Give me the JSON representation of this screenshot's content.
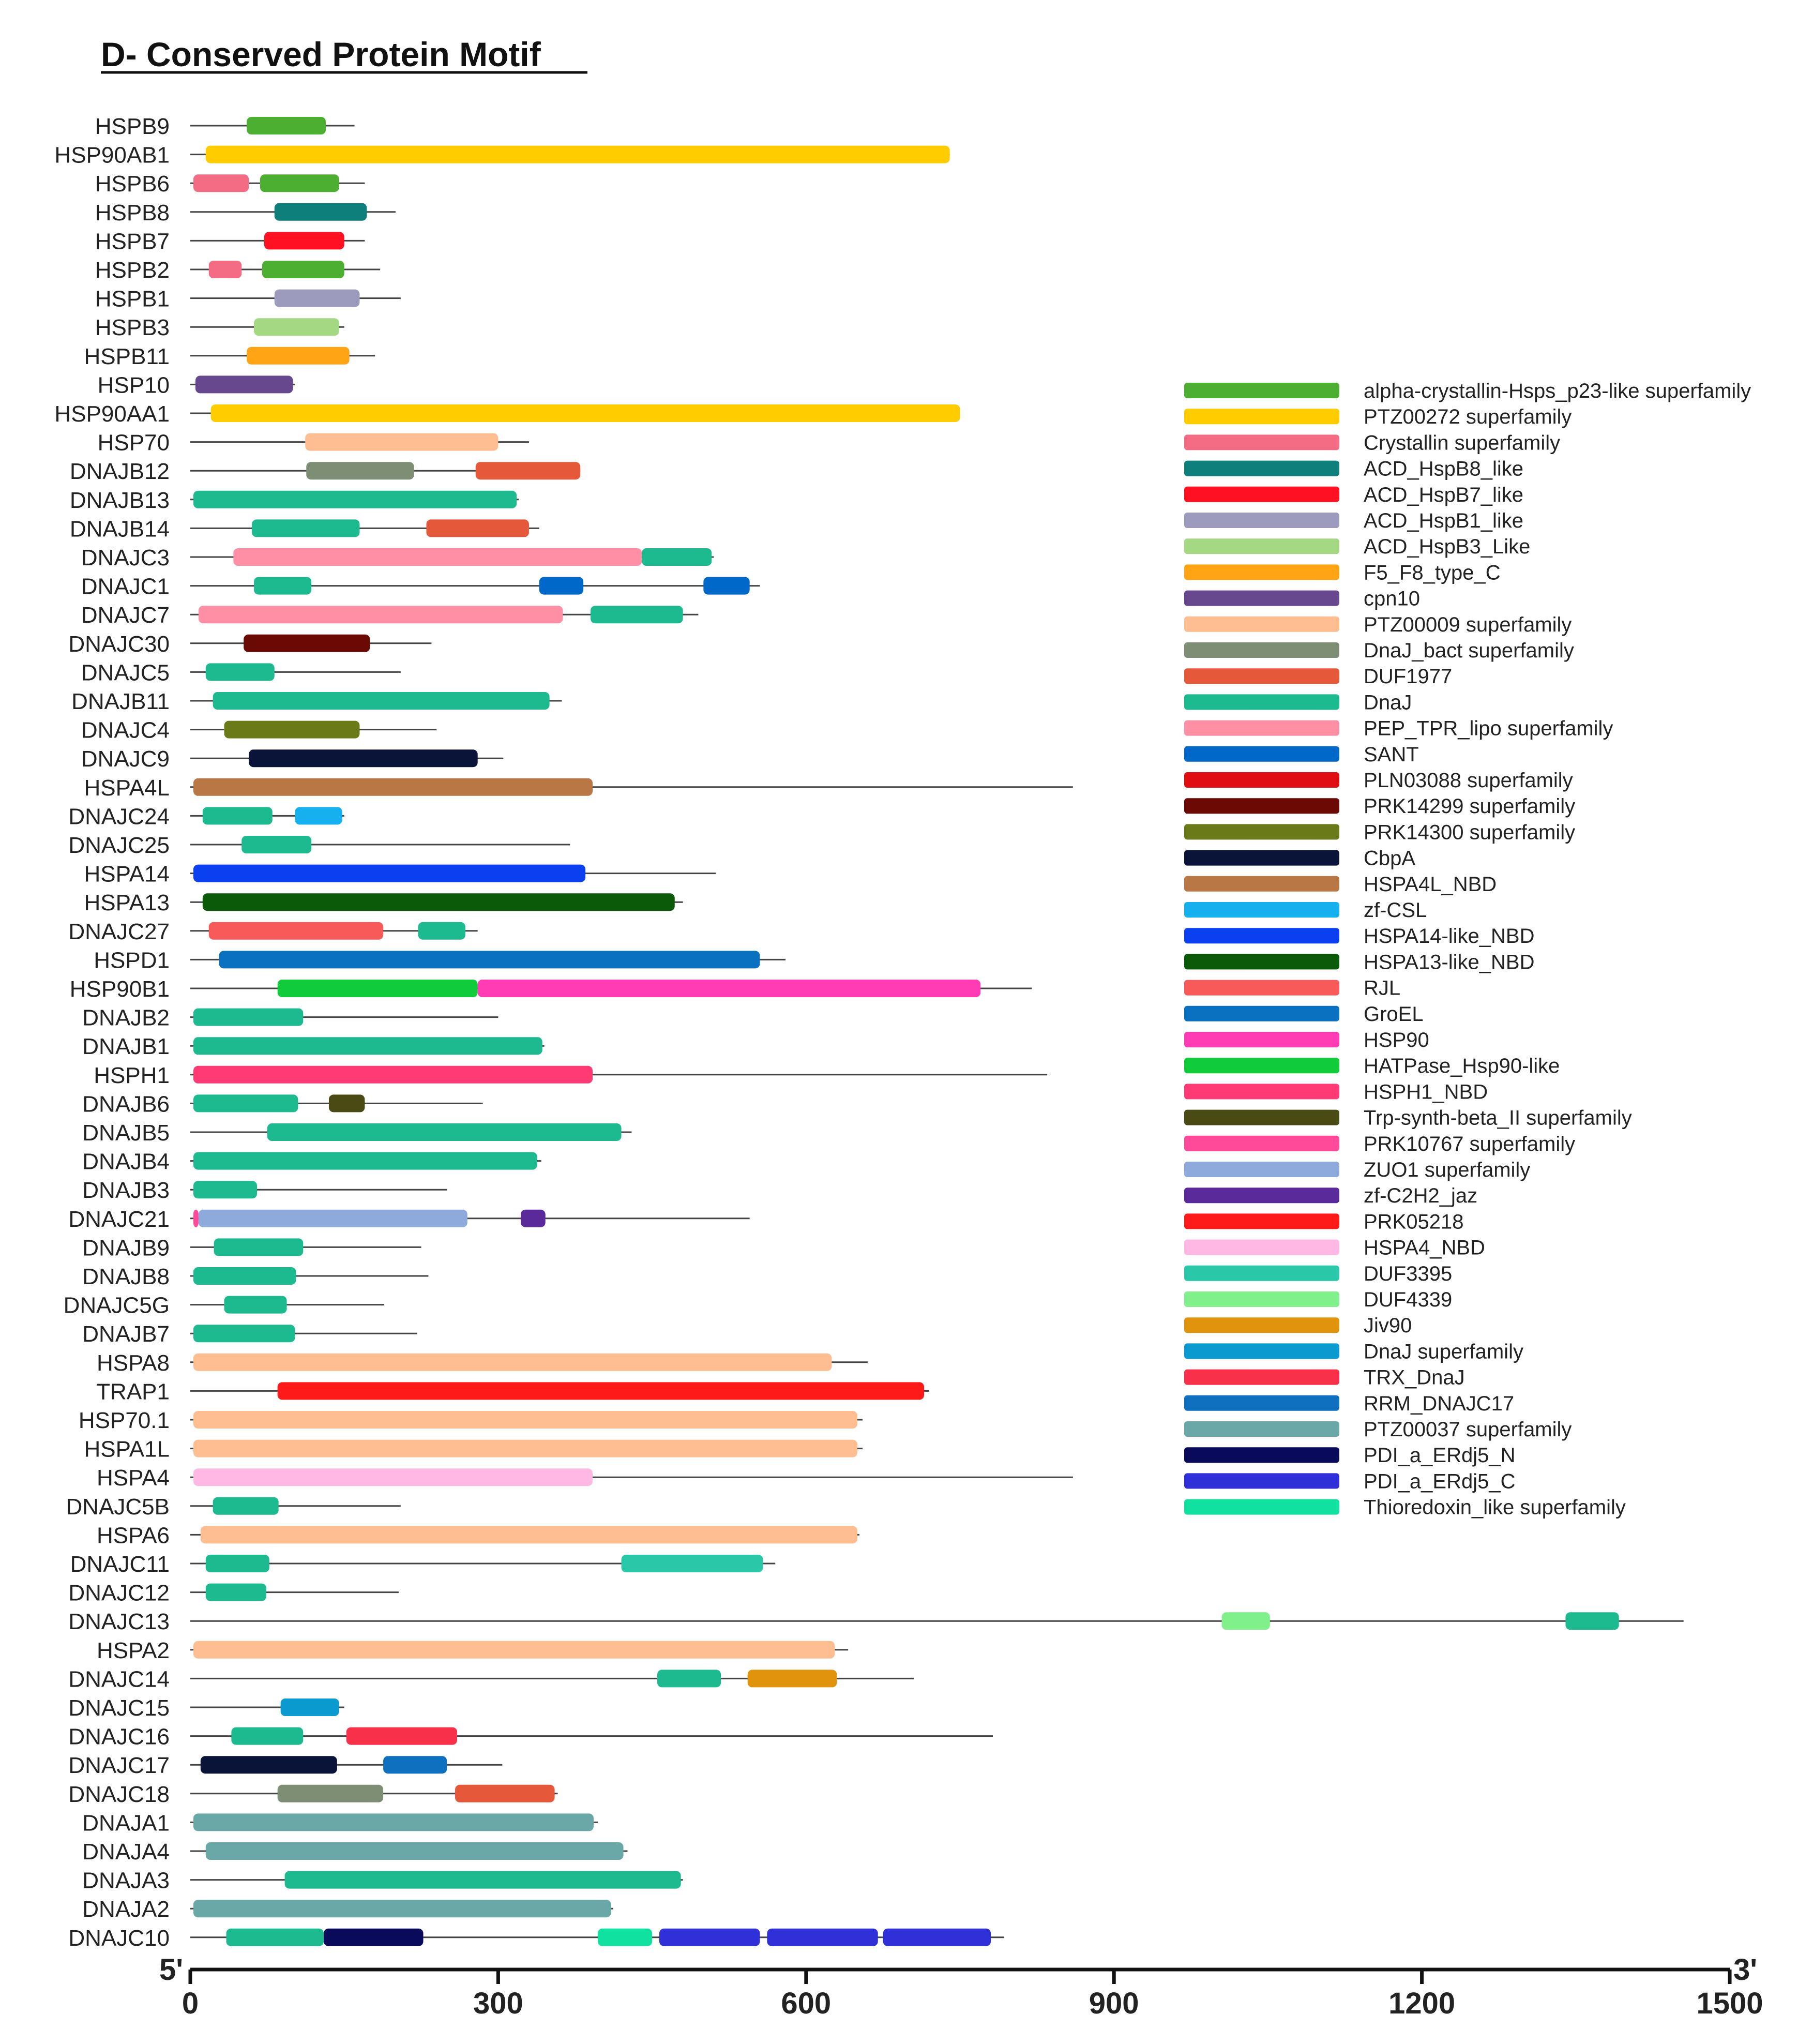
{
  "chart_data": {
    "type": "domain-architecture",
    "title": "D- Conserved Protein Motif",
    "axis": {
      "min": 0,
      "max": 1500,
      "ticks": [
        0,
        300,
        600,
        900,
        1200,
        1500
      ],
      "tick_labels": [
        "0",
        "300",
        "600",
        "900",
        "1200",
        "1500"
      ],
      "start_label": "5'",
      "end_label": "3'"
    },
    "legend": {
      "position": "right",
      "items": [
        {
          "name": "alpha-crystallin-Hsps_p23-like superfamily",
          "color": "#4daf32"
        },
        {
          "name": "PTZ00272 superfamily",
          "color": "#ffcc00"
        },
        {
          "name": "Crystallin superfamily",
          "color": "#f46b84"
        },
        {
          "name": "ACD_HspB8_like",
          "color": "#0e7f7a"
        },
        {
          "name": "ACD_HspB7_like",
          "color": "#ff1122"
        },
        {
          "name": "ACD_HspB1_like",
          "color": "#9c9bbd"
        },
        {
          "name": "ACD_HspB3_Like",
          "color": "#a4d883"
        },
        {
          "name": "F5_F8_type_C",
          "color": "#ffa414"
        },
        {
          "name": "cpn10",
          "color": "#67488f"
        },
        {
          "name": "PTZ00009 superfamily",
          "color": "#ffbe91"
        },
        {
          "name": "DnaJ_bact superfamily",
          "color": "#7e8e74"
        },
        {
          "name": "DUF1977",
          "color": "#e5583a"
        },
        {
          "name": "DnaJ",
          "color": "#1dba8f"
        },
        {
          "name": "PEP_TPR_lipo superfamily",
          "color": "#ff8fa5"
        },
        {
          "name": "SANT",
          "color": "#0068c8"
        },
        {
          "name": "PLN03088 superfamily",
          "color": "#e00e12"
        },
        {
          "name": "PRK14299 superfamily",
          "color": "#6b0a05"
        },
        {
          "name": "PRK14300 superfamily",
          "color": "#6a7a19"
        },
        {
          "name": "CbpA",
          "color": "#0a1438"
        },
        {
          "name": "HSPA4L_NBD",
          "color": "#b87744"
        },
        {
          "name": "zf-CSL",
          "color": "#16b0ef"
        },
        {
          "name": "HSPA14-like_NBD",
          "color": "#0a40f0"
        },
        {
          "name": "HSPA13-like_NBD",
          "color": "#0a5a0a"
        },
        {
          "name": "RJL",
          "color": "#f85a5a"
        },
        {
          "name": "GroEL",
          "color": "#0a70c0"
        },
        {
          "name": "HSP90",
          "color": "#ff3cb4"
        },
        {
          "name": "HATPase_Hsp90-like",
          "color": "#10cc3a"
        },
        {
          "name": "HSPH1_NBD",
          "color": "#ff3a74"
        },
        {
          "name": "Trp-synth-beta_II superfamily",
          "color": "#4a4a14"
        },
        {
          "name": "PRK10767 superfamily",
          "color": "#ff4a9a"
        },
        {
          "name": "ZUO1 superfamily",
          "color": "#8eaadc"
        },
        {
          "name": "zf-C2H2_jaz",
          "color": "#5a2a9a"
        },
        {
          "name": "PRK05218",
          "color": "#ff1a1a"
        },
        {
          "name": "HSPA4_NBD",
          "color": "#ffb8e4"
        },
        {
          "name": "DUF3395",
          "color": "#28c8a8"
        },
        {
          "name": "DUF4339",
          "color": "#7ff08a"
        },
        {
          "name": "Jiv90",
          "color": "#e0940e"
        },
        {
          "name": "DnaJ superfamily",
          "color": "#0a9ad0"
        },
        {
          "name": "TRX_DnaJ",
          "color": "#f8304a"
        },
        {
          "name": "RRM_DNAJC17",
          "color": "#1070c0"
        },
        {
          "name": "PTZ00037 superfamily",
          "color": "#6aa8a8"
        },
        {
          "name": "PDI_a_ERdj5_N",
          "color": "#0a0a5a"
        },
        {
          "name": "PDI_a_ERdj5_C",
          "color": "#3030d8"
        },
        {
          "name": "Thioredoxin_like superfamily",
          "color": "#10e0a0"
        }
      ]
    },
    "proteins": [
      {
        "name": "HSPB9",
        "length": 160,
        "domains": [
          {
            "start": 55,
            "end": 132,
            "motif": 0
          }
        ]
      },
      {
        "name": "HSP90AB1",
        "length": 740,
        "domains": [
          {
            "start": 15,
            "end": 740,
            "motif": 1
          }
        ]
      },
      {
        "name": "HSPB6",
        "length": 170,
        "domains": [
          {
            "start": 3,
            "end": 57,
            "motif": 2
          },
          {
            "start": 68,
            "end": 145,
            "motif": 0
          }
        ]
      },
      {
        "name": "HSPB8",
        "length": 200,
        "domains": [
          {
            "start": 82,
            "end": 172,
            "motif": 3
          }
        ]
      },
      {
        "name": "HSPB7",
        "length": 170,
        "domains": [
          {
            "start": 72,
            "end": 150,
            "motif": 4
          }
        ]
      },
      {
        "name": "HSPB2",
        "length": 185,
        "domains": [
          {
            "start": 18,
            "end": 50,
            "motif": 2
          },
          {
            "start": 70,
            "end": 150,
            "motif": 0
          }
        ]
      },
      {
        "name": "HSPB1",
        "length": 205,
        "domains": [
          {
            "start": 82,
            "end": 165,
            "motif": 5
          }
        ]
      },
      {
        "name": "HSPB3",
        "length": 150,
        "domains": [
          {
            "start": 62,
            "end": 145,
            "motif": 6
          }
        ]
      },
      {
        "name": "HSPB11",
        "length": 180,
        "domains": [
          {
            "start": 55,
            "end": 155,
            "motif": 7
          }
        ]
      },
      {
        "name": "HSP10",
        "length": 102,
        "domains": [
          {
            "start": 5,
            "end": 100,
            "motif": 8
          }
        ]
      },
      {
        "name": "HSP90AA1",
        "length": 750,
        "domains": [
          {
            "start": 20,
            "end": 750,
            "motif": 1
          }
        ]
      },
      {
        "name": "HSP70",
        "length": 330,
        "domains": [
          {
            "start": 112,
            "end": 300,
            "motif": 9
          }
        ]
      },
      {
        "name": "DNAJB12",
        "length": 380,
        "domains": [
          {
            "start": 113,
            "end": 218,
            "motif": 10
          },
          {
            "start": 278,
            "end": 380,
            "motif": 11
          }
        ]
      },
      {
        "name": "DNAJB13",
        "length": 320,
        "domains": [
          {
            "start": 3,
            "end": 318,
            "motif": 12
          }
        ]
      },
      {
        "name": "DNAJB14",
        "length": 340,
        "domains": [
          {
            "start": 60,
            "end": 165,
            "motif": 12
          },
          {
            "start": 230,
            "end": 330,
            "motif": 11
          }
        ]
      },
      {
        "name": "DNAJC3",
        "length": 510,
        "domains": [
          {
            "start": 42,
            "end": 440,
            "motif": 13
          },
          {
            "start": 440,
            "end": 508,
            "motif": 12
          }
        ]
      },
      {
        "name": "DNAJC1",
        "length": 555,
        "domains": [
          {
            "start": 62,
            "end": 118,
            "motif": 12
          },
          {
            "start": 340,
            "end": 383,
            "motif": 14
          },
          {
            "start": 500,
            "end": 545,
            "motif": 14
          }
        ]
      },
      {
        "name": "DNAJC7",
        "length": 495,
        "domains": [
          {
            "start": 8,
            "end": 363,
            "motif": 13
          },
          {
            "start": 390,
            "end": 480,
            "motif": 12
          }
        ]
      },
      {
        "name": "DNAJC30",
        "length": 235,
        "domains": [
          {
            "start": 52,
            "end": 175,
            "motif": 16
          }
        ]
      },
      {
        "name": "DNAJC5",
        "length": 205,
        "domains": [
          {
            "start": 15,
            "end": 82,
            "motif": 12
          }
        ]
      },
      {
        "name": "DNAJB11",
        "length": 362,
        "domains": [
          {
            "start": 22,
            "end": 350,
            "motif": 12
          }
        ]
      },
      {
        "name": "DNAJC4",
        "length": 240,
        "domains": [
          {
            "start": 33,
            "end": 165,
            "motif": 17
          }
        ]
      },
      {
        "name": "DNAJC9",
        "length": 305,
        "domains": [
          {
            "start": 57,
            "end": 280,
            "motif": 18
          }
        ]
      },
      {
        "name": "HSPA4L",
        "length": 860,
        "domains": [
          {
            "start": 3,
            "end": 392,
            "motif": 19
          }
        ]
      },
      {
        "name": "DNAJC24",
        "length": 150,
        "domains": [
          {
            "start": 12,
            "end": 80,
            "motif": 12
          },
          {
            "start": 102,
            "end": 148,
            "motif": 20
          }
        ]
      },
      {
        "name": "DNAJC25",
        "length": 370,
        "domains": [
          {
            "start": 50,
            "end": 118,
            "motif": 12
          }
        ]
      },
      {
        "name": "HSPA14",
        "length": 512,
        "domains": [
          {
            "start": 3,
            "end": 385,
            "motif": 21
          }
        ]
      },
      {
        "name": "HSPA13",
        "length": 480,
        "domains": [
          {
            "start": 12,
            "end": 472,
            "motif": 22
          }
        ]
      },
      {
        "name": "DNAJC27",
        "length": 280,
        "domains": [
          {
            "start": 18,
            "end": 188,
            "motif": 23
          },
          {
            "start": 222,
            "end": 268,
            "motif": 12
          }
        ]
      },
      {
        "name": "HSPD1",
        "length": 580,
        "domains": [
          {
            "start": 28,
            "end": 555,
            "motif": 24
          }
        ]
      },
      {
        "name": "HSP90B1",
        "length": 820,
        "domains": [
          {
            "start": 85,
            "end": 280,
            "motif": 26
          },
          {
            "start": 280,
            "end": 770,
            "motif": 25
          }
        ]
      },
      {
        "name": "DNAJB2",
        "length": 300,
        "domains": [
          {
            "start": 3,
            "end": 110,
            "motif": 12
          }
        ]
      },
      {
        "name": "DNAJB1",
        "length": 345,
        "domains": [
          {
            "start": 3,
            "end": 343,
            "motif": 12
          }
        ]
      },
      {
        "name": "HSPH1",
        "length": 835,
        "domains": [
          {
            "start": 3,
            "end": 392,
            "motif": 27
          }
        ]
      },
      {
        "name": "DNAJB6",
        "length": 285,
        "domains": [
          {
            "start": 3,
            "end": 105,
            "motif": 12
          },
          {
            "start": 135,
            "end": 170,
            "motif": 28
          }
        ]
      },
      {
        "name": "DNAJB5",
        "length": 430,
        "domains": [
          {
            "start": 75,
            "end": 420,
            "motif": 12
          }
        ]
      },
      {
        "name": "DNAJB4",
        "length": 342,
        "domains": [
          {
            "start": 3,
            "end": 338,
            "motif": 12
          }
        ]
      },
      {
        "name": "DNAJB3",
        "length": 250,
        "domains": [
          {
            "start": 3,
            "end": 65,
            "motif": 12
          }
        ]
      },
      {
        "name": "DNAJC21",
        "length": 545,
        "domains": [
          {
            "start": 3,
            "end": 8,
            "motif": 29
          },
          {
            "start": 8,
            "end": 270,
            "motif": 30
          },
          {
            "start": 322,
            "end": 346,
            "motif": 31
          }
        ]
      },
      {
        "name": "DNAJB9",
        "length": 225,
        "domains": [
          {
            "start": 23,
            "end": 110,
            "motif": 12
          }
        ]
      },
      {
        "name": "DNAJB8",
        "length": 232,
        "domains": [
          {
            "start": 3,
            "end": 103,
            "motif": 12
          }
        ]
      },
      {
        "name": "DNAJC5G",
        "length": 189,
        "domains": [
          {
            "start": 33,
            "end": 94,
            "motif": 12
          }
        ]
      },
      {
        "name": "DNAJB7",
        "length": 221,
        "domains": [
          {
            "start": 3,
            "end": 102,
            "motif": 12
          }
        ]
      },
      {
        "name": "HSPA8",
        "length": 660,
        "domains": [
          {
            "start": 3,
            "end": 625,
            "motif": 9
          }
        ]
      },
      {
        "name": "TRAP1",
        "length": 720,
        "domains": [
          {
            "start": 85,
            "end": 715,
            "motif": 32
          }
        ]
      },
      {
        "name": "HSP70.1",
        "length": 655,
        "domains": [
          {
            "start": 3,
            "end": 650,
            "motif": 9
          }
        ]
      },
      {
        "name": "HSPA1L",
        "length": 655,
        "domains": [
          {
            "start": 3,
            "end": 650,
            "motif": 9
          }
        ]
      },
      {
        "name": "HSPA4",
        "length": 860,
        "domains": [
          {
            "start": 3,
            "end": 392,
            "motif": 33
          }
        ]
      },
      {
        "name": "DNAJC5B",
        "length": 205,
        "domains": [
          {
            "start": 22,
            "end": 86,
            "motif": 12
          }
        ]
      },
      {
        "name": "HSPA6",
        "length": 652,
        "domains": [
          {
            "start": 10,
            "end": 650,
            "motif": 9
          }
        ]
      },
      {
        "name": "DNAJC11",
        "length": 570,
        "domains": [
          {
            "start": 15,
            "end": 77,
            "motif": 12
          },
          {
            "start": 420,
            "end": 558,
            "motif": 34
          }
        ]
      },
      {
        "name": "DNAJC12",
        "length": 203,
        "domains": [
          {
            "start": 15,
            "end": 74,
            "motif": 12
          }
        ]
      },
      {
        "name": "DNAJC13",
        "length": 1455,
        "domains": [
          {
            "start": 1005,
            "end": 1052,
            "motif": 35
          },
          {
            "start": 1340,
            "end": 1392,
            "motif": 12
          }
        ]
      },
      {
        "name": "HSPA2",
        "length": 641,
        "domains": [
          {
            "start": 3,
            "end": 628,
            "motif": 9
          }
        ]
      },
      {
        "name": "DNAJC14",
        "length": 705,
        "domains": [
          {
            "start": 455,
            "end": 517,
            "motif": 12
          },
          {
            "start": 543,
            "end": 630,
            "motif": 36
          }
        ]
      },
      {
        "name": "DNAJC15",
        "length": 150,
        "domains": [
          {
            "start": 88,
            "end": 145,
            "motif": 37
          }
        ]
      },
      {
        "name": "DNAJC16",
        "length": 782,
        "domains": [
          {
            "start": 40,
            "end": 110,
            "motif": 12
          },
          {
            "start": 152,
            "end": 260,
            "motif": 38
          }
        ]
      },
      {
        "name": "DNAJC17",
        "length": 304,
        "domains": [
          {
            "start": 10,
            "end": 143,
            "motif": 18
          },
          {
            "start": 188,
            "end": 250,
            "motif": 39
          }
        ]
      },
      {
        "name": "DNAJC18",
        "length": 358,
        "domains": [
          {
            "start": 85,
            "end": 188,
            "motif": 10
          },
          {
            "start": 258,
            "end": 355,
            "motif": 11
          }
        ]
      },
      {
        "name": "DNAJA1",
        "length": 397,
        "domains": [
          {
            "start": 3,
            "end": 393,
            "motif": 40
          }
        ]
      },
      {
        "name": "DNAJA4",
        "length": 426,
        "domains": [
          {
            "start": 15,
            "end": 422,
            "motif": 40
          }
        ]
      },
      {
        "name": "DNAJA3",
        "length": 480,
        "domains": [
          {
            "start": 92,
            "end": 478,
            "motif": 12
          }
        ]
      },
      {
        "name": "DNAJA2",
        "length": 412,
        "domains": [
          {
            "start": 3,
            "end": 410,
            "motif": 40
          }
        ]
      },
      {
        "name": "DNAJC10",
        "length": 793,
        "domains": [
          {
            "start": 35,
            "end": 130,
            "motif": 12
          },
          {
            "start": 130,
            "end": 227,
            "motif": 41
          },
          {
            "start": 397,
            "end": 450,
            "motif": 43
          },
          {
            "start": 457,
            "end": 555,
            "motif": 42
          },
          {
            "start": 562,
            "end": 670,
            "motif": 42
          },
          {
            "start": 675,
            "end": 780,
            "motif": 42
          }
        ]
      }
    ]
  }
}
